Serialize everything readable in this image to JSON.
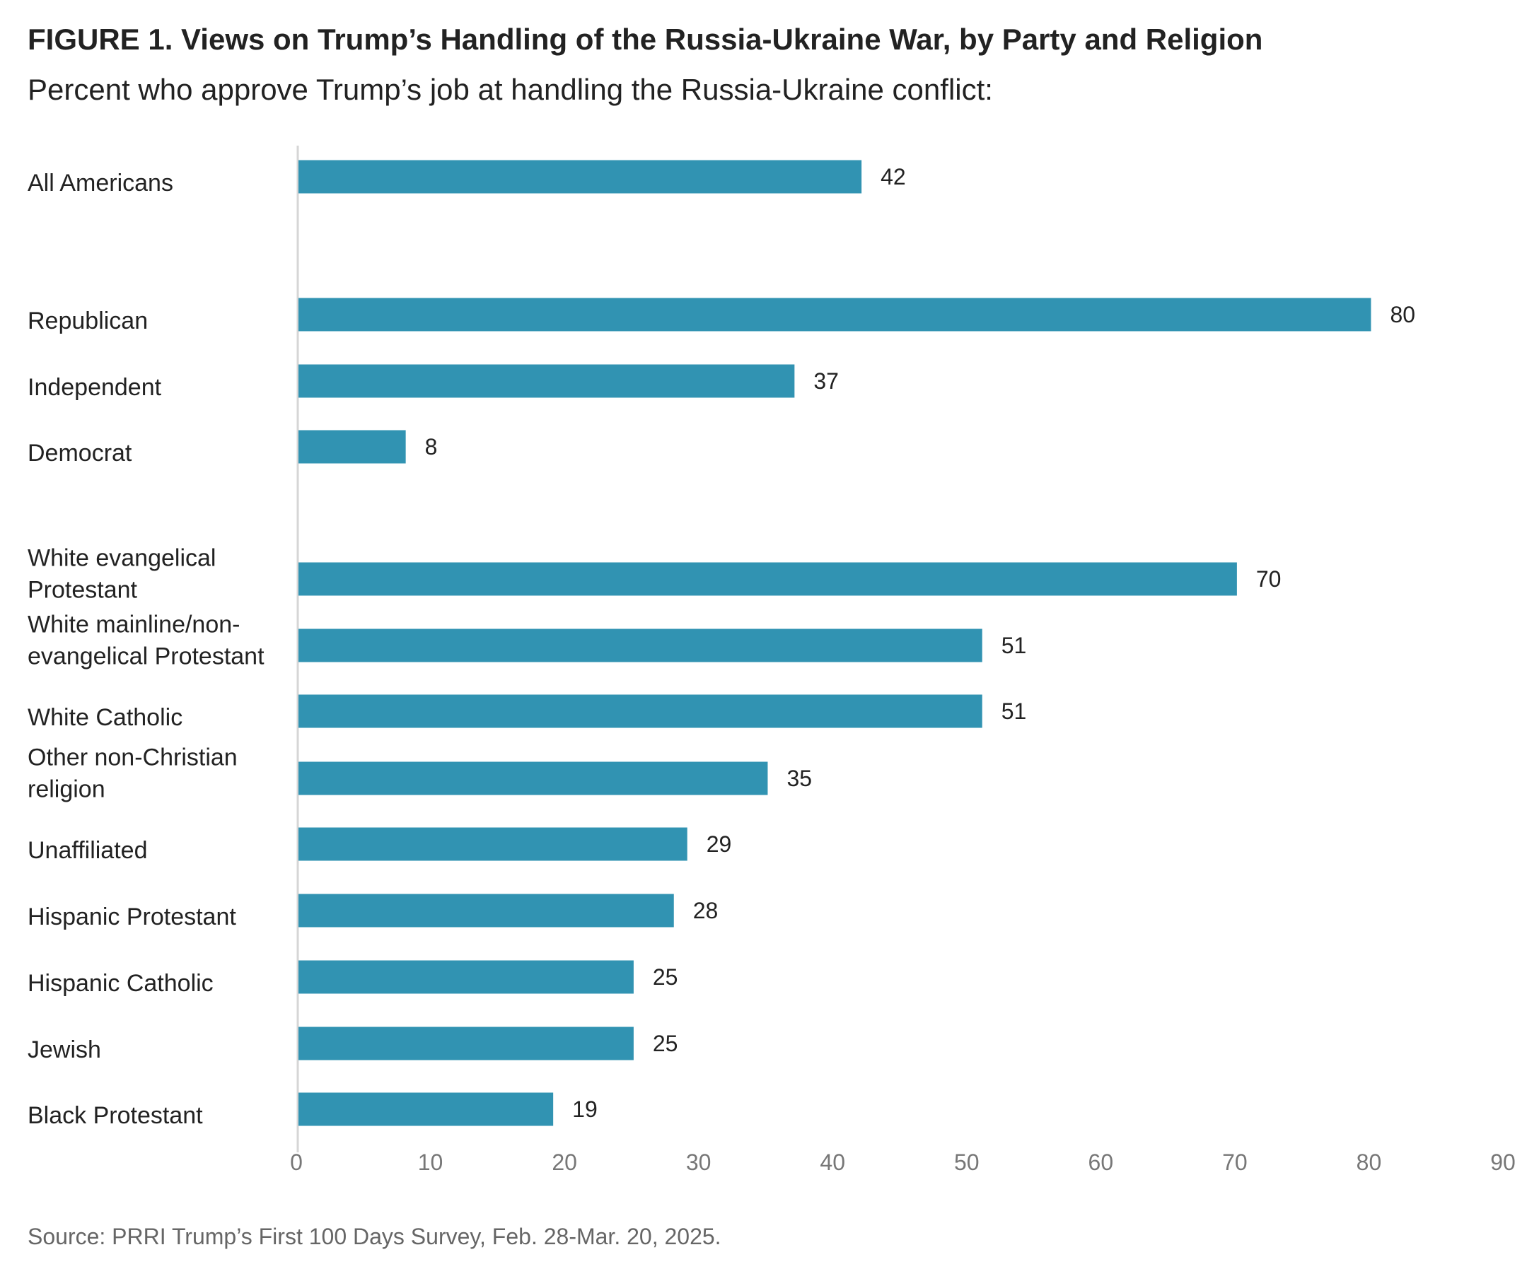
{
  "chart_data": {
    "type": "bar",
    "orientation": "horizontal",
    "title": "FIGURE 1. Views on Trump’s Handling of the Russia-Ukraine War, by Party and Religion",
    "subtitle": "Percent who approve Trump’s job at handling the Russia-Ukraine conflict:",
    "source": "Source: PRRI Trump’s First 100 Days Survey, Feb. 28-Mar. 20, 2025.",
    "categories": [
      [
        "All Americans"
      ],
      [
        "Republican"
      ],
      [
        "Independent"
      ],
      [
        "Democrat"
      ],
      [
        "White evangelical",
        "Protestant"
      ],
      [
        "White mainline/non-",
        "evangelical Protestant"
      ],
      [
        "White Catholic"
      ],
      [
        "Other non-Christian",
        "religion"
      ],
      [
        "Unaffiliated"
      ],
      [
        "Hispanic Protestant"
      ],
      [
        "Hispanic Catholic"
      ],
      [
        "Jewish"
      ],
      [
        "Black Protestant"
      ]
    ],
    "values": [
      42,
      80,
      37,
      8,
      70,
      51,
      51,
      35,
      29,
      28,
      25,
      25,
      19
    ],
    "groups": [
      [
        0
      ],
      [
        1,
        2,
        3
      ],
      [
        4,
        5,
        6,
        7,
        8,
        9,
        10,
        11,
        12
      ]
    ],
    "xlim": [
      0,
      90
    ],
    "xticks": [
      0,
      10,
      20,
      30,
      40,
      50,
      60,
      70,
      80,
      90
    ],
    "xlabel": "",
    "ylabel": "",
    "grid": false,
    "legend": "none",
    "colors": {
      "bar": "#3193b2",
      "text": "#222222",
      "tick": "#777777",
      "source": "#666666",
      "axis": "#d6d6d6"
    }
  }
}
